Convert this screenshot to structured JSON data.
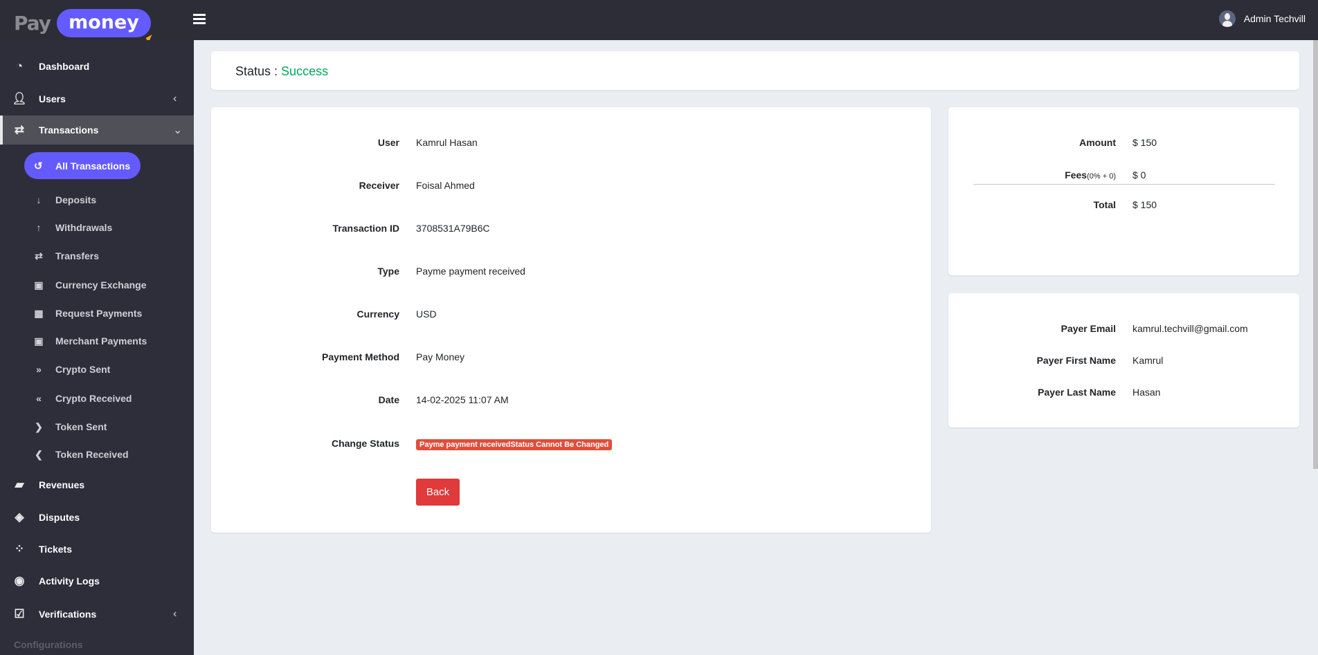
{
  "brand": {
    "pay": "Pay",
    "money": "money"
  },
  "header": {
    "user_name": "Admin Techvill"
  },
  "sidebar": {
    "items": [
      {
        "label": "Dashboard",
        "icon": "tachometer-icon"
      },
      {
        "label": "Users",
        "icon": "user-icon"
      },
      {
        "label": "Transactions",
        "icon": "transactions-icon"
      },
      {
        "label": "Revenues",
        "icon": "book-icon"
      },
      {
        "label": "Disputes",
        "icon": "ticket-icon"
      },
      {
        "label": "Tickets",
        "icon": "spinner-icon"
      },
      {
        "label": "Activity Logs",
        "icon": "eye-icon"
      },
      {
        "label": "Verifications",
        "icon": "check-square-icon"
      }
    ],
    "active_sub": {
      "label": "All Transactions",
      "icon": "history-icon"
    },
    "sub_items": [
      {
        "label": "Deposits",
        "icon": "arrow-down-icon"
      },
      {
        "label": "Withdrawals",
        "icon": "arrow-up-icon"
      },
      {
        "label": "Transfers",
        "icon": "exchange-icon"
      },
      {
        "label": "Currency Exchange",
        "icon": "money-icon"
      },
      {
        "label": "Request Payments",
        "icon": "calculator-icon"
      },
      {
        "label": "Merchant Payments",
        "icon": "money-icon"
      },
      {
        "label": "Crypto Sent",
        "icon": "angle-double-right-icon"
      },
      {
        "label": "Crypto Received",
        "icon": "angle-double-left-icon"
      },
      {
        "label": "Token Sent",
        "icon": "chevron-circle-right-icon"
      },
      {
        "label": "Token Received",
        "icon": "chevron-circle-left-icon"
      }
    ],
    "section": "Configurations"
  },
  "status": {
    "label": "Status :",
    "value": "Success",
    "color": "#00a85a"
  },
  "details": [
    {
      "label": "User",
      "value": "Kamrul Hasan"
    },
    {
      "label": "Receiver",
      "value": "Foisal Ahmed"
    },
    {
      "label": "Transaction ID",
      "value": "3708531A79B6C"
    },
    {
      "label": "Type",
      "value": "Payme payment received"
    },
    {
      "label": "Currency",
      "value": "USD"
    },
    {
      "label": "Payment Method",
      "value": "Pay Money"
    },
    {
      "label": "Date",
      "value": "14-02-2025 11:07 AM"
    }
  ],
  "change_status": {
    "label": "Change Status",
    "badge": "Payme payment receivedStatus Cannot Be Changed"
  },
  "back_label": "Back",
  "summary": {
    "amount": {
      "label": "Amount",
      "value": "$ 150"
    },
    "fees": {
      "label": "Fees",
      "detail": "(0% + 0)",
      "value": "$ 0"
    },
    "total": {
      "label": "Total",
      "value": "$ 150"
    }
  },
  "payer": [
    {
      "label": "Payer Email",
      "value": "kamrul.techvill@gmail.com"
    },
    {
      "label": "Payer First Name",
      "value": "Kamrul"
    },
    {
      "label": "Payer Last Name",
      "value": "Hasan"
    }
  ]
}
